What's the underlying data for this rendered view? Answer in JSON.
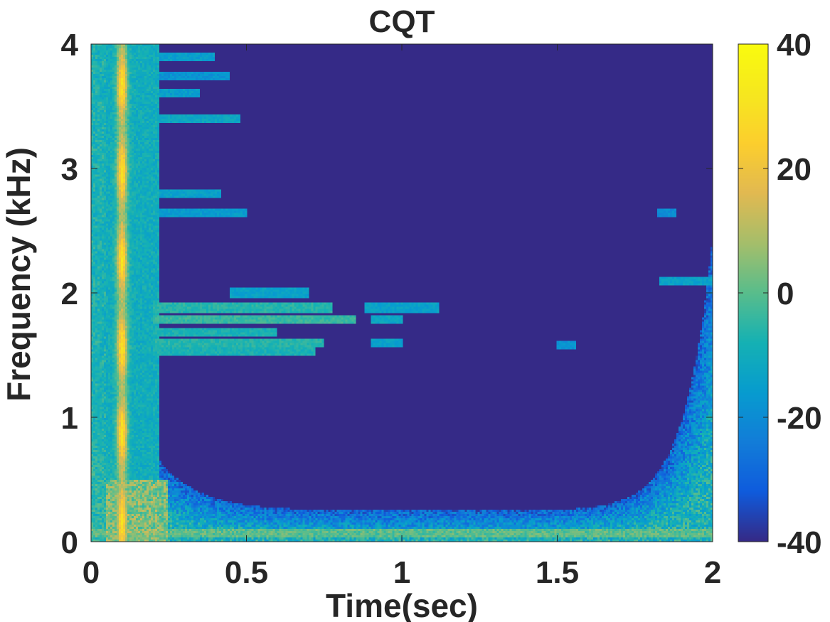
{
  "chart_data": {
    "type": "heatmap",
    "title": "CQT",
    "xlabel": "Time(sec)",
    "ylabel": "Frequency (kHz)",
    "xlim": [
      0,
      2
    ],
    "ylim": [
      0,
      4
    ],
    "x_ticks": [
      0,
      0.5,
      1,
      1.5,
      2
    ],
    "x_tick_labels": [
      "0",
      "0.5",
      "1",
      "1.5",
      "2"
    ],
    "y_ticks": [
      0,
      1,
      2,
      3,
      4
    ],
    "y_tick_labels": [
      "0",
      "1",
      "2",
      "3",
      "4"
    ],
    "colorbar": {
      "range": [
        -40,
        40
      ],
      "ticks": [
        -40,
        -20,
        0,
        20,
        40
      ],
      "tick_labels": [
        "-40",
        "-20",
        "0",
        "20",
        "40"
      ],
      "colormap": "parula"
    },
    "grid": false,
    "approx_features": {
      "onset_time_sec": 0.1,
      "onset_level_db": 30,
      "background_level_db": -40,
      "low_band_khz": 0.07,
      "low_band_level_db": 5,
      "harmonic_lines": [
        {
          "freq_khz": 3.9,
          "t_start": 0.2,
          "t_end": 0.4,
          "level_db": -15
        },
        {
          "freq_khz": 3.75,
          "t_start": 0.2,
          "t_end": 0.45,
          "level_db": -18
        },
        {
          "freq_khz": 3.6,
          "t_start": 0.2,
          "t_end": 0.35,
          "level_db": -15
        },
        {
          "freq_khz": 3.4,
          "t_start": 0.2,
          "t_end": 0.48,
          "level_db": -12
        },
        {
          "freq_khz": 2.8,
          "t_start": 0.2,
          "t_end": 0.42,
          "level_db": -14
        },
        {
          "freq_khz": 2.65,
          "t_start": 0.22,
          "t_end": 0.5,
          "level_db": -16
        },
        {
          "freq_khz": 2.0,
          "t_start": 0.45,
          "t_end": 0.7,
          "level_db": -14
        },
        {
          "freq_khz": 1.88,
          "t_start": 0.2,
          "t_end": 0.78,
          "level_db": -6
        },
        {
          "freq_khz": 1.88,
          "t_start": 0.88,
          "t_end": 1.12,
          "level_db": -14
        },
        {
          "freq_khz": 1.78,
          "t_start": 0.2,
          "t_end": 0.85,
          "level_db": -4
        },
        {
          "freq_khz": 1.78,
          "t_start": 0.9,
          "t_end": 1.0,
          "level_db": -12
        },
        {
          "freq_khz": 1.68,
          "t_start": 0.2,
          "t_end": 0.6,
          "level_db": -8
        },
        {
          "freq_khz": 1.6,
          "t_start": 0.2,
          "t_end": 0.75,
          "level_db": -6
        },
        {
          "freq_khz": 1.6,
          "t_start": 0.9,
          "t_end": 1.0,
          "level_db": -14
        },
        {
          "freq_khz": 1.52,
          "t_start": 0.2,
          "t_end": 0.72,
          "level_db": -8
        },
        {
          "freq_khz": 1.58,
          "t_start": 1.5,
          "t_end": 1.56,
          "level_db": -18
        },
        {
          "freq_khz": 2.1,
          "t_start": 1.83,
          "t_end": 2.0,
          "level_db": -14
        },
        {
          "freq_khz": 2.65,
          "t_start": 1.82,
          "t_end": 1.88,
          "level_db": -20
        }
      ]
    }
  }
}
